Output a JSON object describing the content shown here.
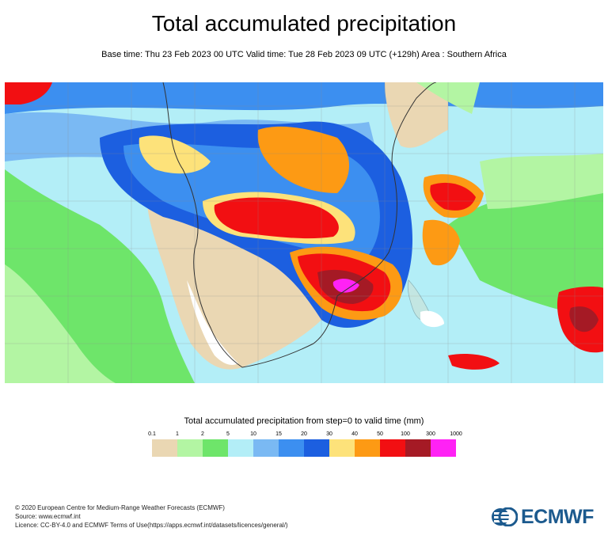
{
  "header": {
    "title": "Total accumulated precipitation",
    "subtitle": "Base time: Thu 23 Feb 2023 00 UTC Valid time: Tue 28 Feb 2023 09 UTC (+129h) Area : Southern Africa"
  },
  "legend": {
    "title": "Total accumulated precipitation from step=0 to valid time (mm)",
    "ticks": [
      "0.1",
      "1",
      "2",
      "5",
      "10",
      "15",
      "20",
      "30",
      "40",
      "50",
      "100",
      "300",
      "1000"
    ],
    "colors": [
      "#ead7b3",
      "#b3f5a3",
      "#6ee56a",
      "#b3eef7",
      "#7ab9f3",
      "#3c8ff0",
      "#1c5fe0",
      "#fde27a",
      "#fd9a14",
      "#f20f12",
      "#a51a25",
      "#ff22f5"
    ]
  },
  "footer": {
    "line1": "© 2020 European Centre for Medium-Range Weather Forecasts (ECMWF)",
    "line2": "Source: www.ecmwf.int",
    "line3": "Licence: CC-BY-4.0 and ECMWF Terms of Use(https://apps.ecmwf.int/datasets/licences/general/)"
  },
  "logo": {
    "text": "ECMWF"
  }
}
